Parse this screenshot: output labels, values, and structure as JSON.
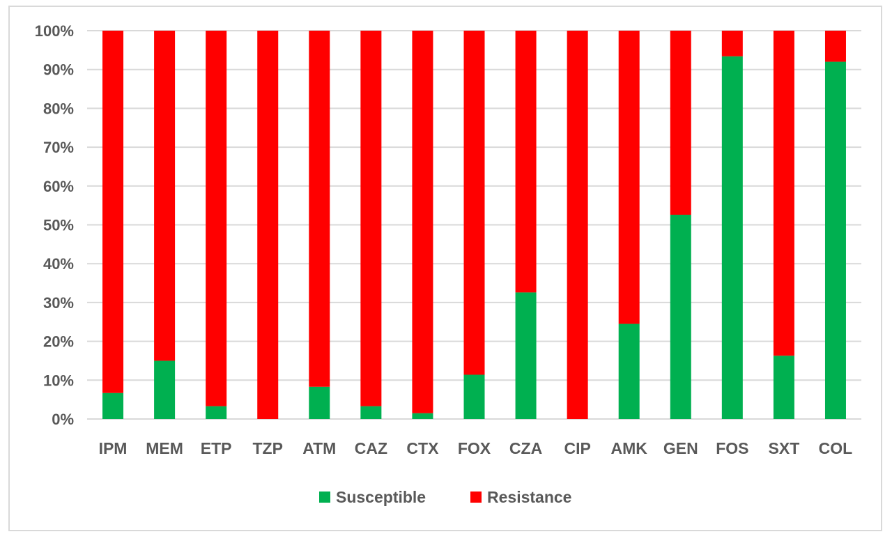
{
  "chart_data": {
    "type": "bar",
    "stacked": true,
    "stacked_percent": true,
    "categories": [
      "IPM",
      "MEM",
      "ETP",
      "TZP",
      "ATM",
      "CAZ",
      "CTX",
      "FOX",
      "CZA",
      "CIP",
      "AMK",
      "GEN",
      "FOS",
      "SXT",
      "COL"
    ],
    "series": [
      {
        "name": "Susceptible",
        "color": "#00b050",
        "values": [
          6.7,
          15.0,
          3.3,
          0.0,
          8.3,
          3.3,
          1.5,
          11.4,
          32.6,
          0.0,
          24.5,
          52.6,
          93.4,
          16.3,
          92.0
        ]
      },
      {
        "name": "Resistance",
        "color": "#ff0000",
        "values": [
          93.3,
          85.0,
          96.7,
          100.0,
          91.7,
          96.7,
          98.5,
          88.6,
          67.4,
          100.0,
          75.5,
          47.4,
          6.6,
          83.7,
          8.0
        ]
      }
    ],
    "y_ticks": [
      "0%",
      "10%",
      "20%",
      "30%",
      "40%",
      "50%",
      "60%",
      "70%",
      "80%",
      "90%",
      "100%"
    ],
    "ylim": [
      0,
      100
    ],
    "grid": true,
    "gridline_color": "#d9d9d9",
    "legend_position": "bottom",
    "title": "",
    "xlabel": "",
    "ylabel": ""
  }
}
